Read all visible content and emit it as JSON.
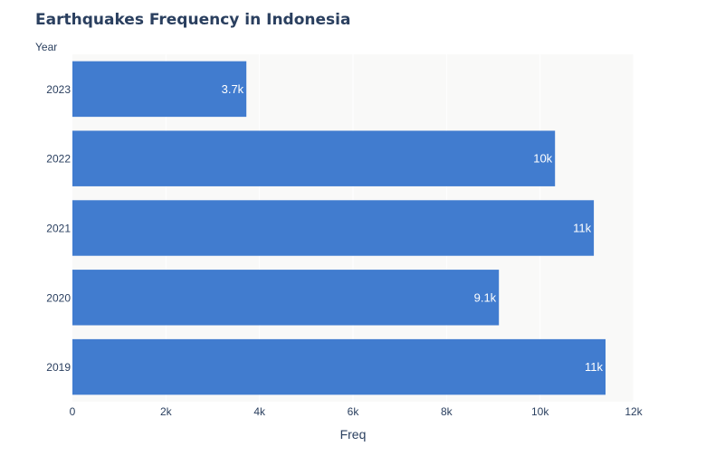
{
  "chart_data": {
    "type": "bar",
    "orientation": "horizontal",
    "title": "Earthquakes Frequency in Indonesia",
    "xlabel": "Freq",
    "ylabel": "Year",
    "categories": [
      "2019",
      "2020",
      "2021",
      "2022",
      "2023"
    ],
    "values": [
      11400,
      9120,
      11150,
      10320,
      3720
    ],
    "data_labels": [
      "11k",
      "9.1k",
      "11k",
      "10k",
      "3.7k"
    ],
    "xlim": [
      0,
      12000
    ],
    "x_ticks": [
      0,
      2000,
      4000,
      6000,
      8000,
      10000,
      12000
    ],
    "x_tick_labels": [
      "0",
      "2k",
      "4k",
      "6k",
      "8k",
      "10k",
      "12k"
    ],
    "grid": true,
    "colors": {
      "bar": "#417ccf",
      "plot_bg": "#f9f9f8",
      "grid": "#ffffff",
      "text": "#2a3f5f",
      "data_label": "#ffffff"
    }
  }
}
